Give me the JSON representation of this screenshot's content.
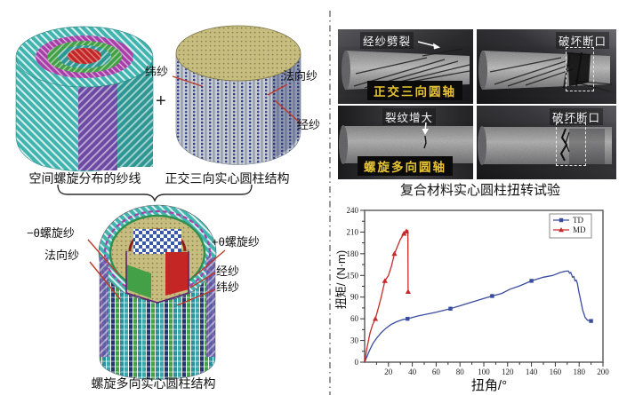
{
  "figure": {
    "left": {
      "caption_a": "空间螺旋分布的纱线",
      "plus_sign": "+",
      "caption_b": "正交三向实心圆柱结构",
      "labels_b": {
        "weft": "纬纱",
        "normal": "法向纱",
        "warp": "经纱"
      },
      "caption_c": "螺旋多向实心圆柱结构",
      "labels_c": {
        "neg_helix": "−θ螺旋纱",
        "normal": "法向纱",
        "pos_helix": "+θ螺旋纱",
        "warp": "经纱",
        "weft": "纬纱"
      }
    },
    "photos": {
      "caption": "复合材料实心圆柱扭转试验",
      "top_left": {
        "annotation": "经纱劈裂",
        "tag": "正交三向圆轴"
      },
      "top_right": {
        "annotation": "破坏断口"
      },
      "bottom_left": {
        "annotation": "裂纹增大",
        "tag": "螺旋多向圆轴"
      },
      "bottom_right": {
        "annotation": "破坏断口"
      }
    }
  },
  "colors": {
    "td_blue": "#3a4c9e",
    "md_red": "#c62a2a",
    "tag_yellow": "#e8c433"
  },
  "chart_data": {
    "type": "line",
    "xlabel": "扭角/°",
    "ylabel": "扭矩/ (N·m)",
    "xlim": [
      0,
      200
    ],
    "x_ticks": [
      20,
      40,
      60,
      80,
      100,
      120,
      140,
      160,
      180,
      200
    ],
    "x_minor_step": 10,
    "y_tick_labels": [
      "0",
      "30",
      "60",
      "90",
      "150",
      "180",
      "210",
      "240"
    ],
    "y_tick_values": [
      0,
      30,
      60,
      90,
      150,
      180,
      210,
      240
    ],
    "legend_position": "top-right",
    "series": [
      {
        "name": "TD",
        "color": "#3a4c9e",
        "marker": "square",
        "points": [
          [
            0,
            0
          ],
          [
            2,
            8
          ],
          [
            4,
            16
          ],
          [
            7,
            26
          ],
          [
            10,
            33
          ],
          [
            14,
            41
          ],
          [
            18,
            47
          ],
          [
            22,
            52
          ],
          [
            27,
            56
          ],
          [
            32,
            59
          ],
          [
            36,
            60
          ],
          [
            45,
            64
          ],
          [
            60,
            69
          ],
          [
            72,
            74
          ],
          [
            80,
            78
          ],
          [
            90,
            83
          ],
          [
            100,
            88
          ],
          [
            107,
            93
          ],
          [
            115,
            100
          ],
          [
            122,
            112
          ],
          [
            130,
            121
          ],
          [
            140,
            135
          ],
          [
            150,
            145
          ],
          [
            158,
            150
          ],
          [
            164,
            154
          ],
          [
            169,
            156
          ],
          [
            171,
            156
          ],
          [
            172,
            153
          ],
          [
            173,
            154
          ],
          [
            174.5,
            145
          ],
          [
            175.5,
            147
          ],
          [
            176.5,
            135
          ],
          [
            177.5,
            137
          ],
          [
            178.5,
            128
          ],
          [
            179.5,
            110
          ],
          [
            181,
            88
          ],
          [
            183,
            72
          ],
          [
            185,
            62
          ],
          [
            187,
            58
          ],
          [
            190,
            57
          ]
        ],
        "marker_points": [
          [
            36,
            60
          ],
          [
            72,
            74
          ],
          [
            107,
            93
          ],
          [
            140,
            135
          ],
          [
            190,
            57
          ]
        ]
      },
      {
        "name": "MD",
        "color": "#c62a2a",
        "marker": "triangle",
        "points": [
          [
            0,
            0
          ],
          [
            2,
            20
          ],
          [
            4.5,
            40
          ],
          [
            6.7,
            52
          ],
          [
            9,
            60
          ],
          [
            12,
            78
          ],
          [
            14,
            92
          ],
          [
            17,
            135
          ],
          [
            20,
            150
          ],
          [
            22.5,
            163
          ],
          [
            25,
            180
          ],
          [
            28,
            192
          ],
          [
            30,
            200
          ],
          [
            33,
            208
          ],
          [
            35,
            211
          ],
          [
            36,
            212
          ],
          [
            36.3,
            212
          ],
          [
            36.5,
            105
          ]
        ],
        "marker_points": [
          [
            9,
            60
          ],
          [
            17,
            135
          ],
          [
            25,
            180
          ],
          [
            33,
            208
          ],
          [
            35,
            211
          ],
          [
            36.5,
            105
          ]
        ]
      }
    ]
  }
}
